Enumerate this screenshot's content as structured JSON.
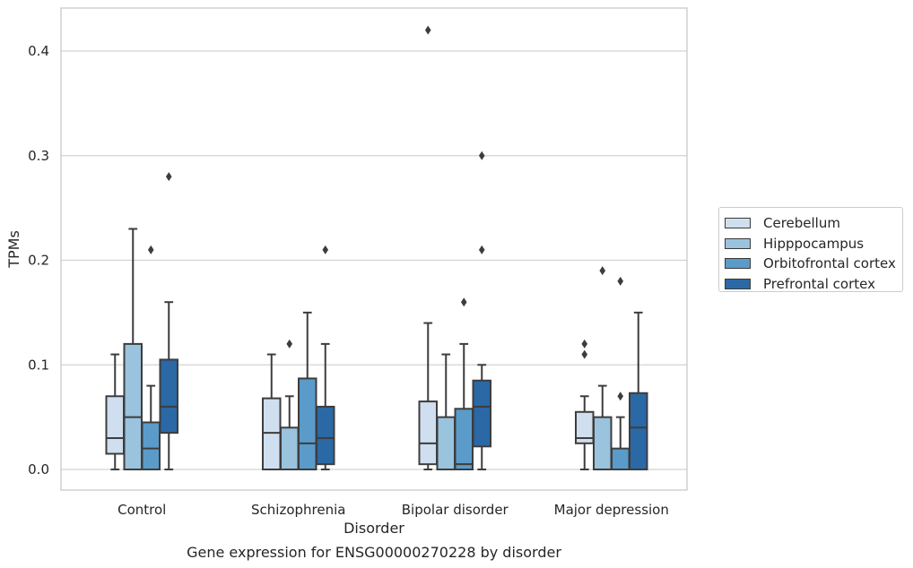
{
  "chart_data": {
    "type": "box",
    "title": "",
    "caption": "Gene expression for ENSG00000270228 by disorder",
    "xlabel": "Disorder",
    "ylabel": "TPMs",
    "ylim": [
      -0.02,
      0.442
    ],
    "yticks": [
      0.0,
      0.1,
      0.2,
      0.3,
      0.4
    ],
    "ytick_labels": [
      "0.0",
      "0.1",
      "0.2",
      "0.3",
      "0.4"
    ],
    "grid": "horizontal",
    "legend_position": "right",
    "categories": [
      "Control",
      "Schizophrenia",
      "Bipolar disorder",
      "Major depression"
    ],
    "series": [
      {
        "name": "Cerebellum",
        "color": "#cfdff0",
        "boxes": [
          {
            "whislo": 0.0,
            "q1": 0.015,
            "med": 0.03,
            "q3": 0.07,
            "whishi": 0.11,
            "fliers": []
          },
          {
            "whislo": 0.0,
            "q1": 0.0,
            "med": 0.035,
            "q3": 0.068,
            "whishi": 0.11,
            "fliers": []
          },
          {
            "whislo": 0.0,
            "q1": 0.005,
            "med": 0.025,
            "q3": 0.065,
            "whishi": 0.14,
            "fliers": [
              0.42
            ]
          },
          {
            "whislo": 0.0,
            "q1": 0.025,
            "med": 0.03,
            "q3": 0.055,
            "whishi": 0.07,
            "fliers": [
              0.11,
              0.12
            ]
          }
        ]
      },
      {
        "name": "Hipppocampus",
        "color": "#9ac3dd",
        "boxes": [
          {
            "whislo": 0.0,
            "q1": 0.0,
            "med": 0.05,
            "q3": 0.12,
            "whishi": 0.23,
            "fliers": []
          },
          {
            "whislo": 0.0,
            "q1": 0.0,
            "med": 0.0,
            "q3": 0.04,
            "whishi": 0.07,
            "fliers": [
              0.12
            ]
          },
          {
            "whislo": 0.0,
            "q1": 0.0,
            "med": 0.0,
            "q3": 0.05,
            "whishi": 0.11,
            "fliers": []
          },
          {
            "whislo": 0.0,
            "q1": 0.0,
            "med": 0.0,
            "q3": 0.05,
            "whishi": 0.08,
            "fliers": [
              0.19
            ]
          }
        ]
      },
      {
        "name": "Orbitofrontal cortex",
        "color": "#5b9bc9",
        "boxes": [
          {
            "whislo": 0.0,
            "q1": 0.0,
            "med": 0.02,
            "q3": 0.045,
            "whishi": 0.08,
            "fliers": [
              0.21
            ]
          },
          {
            "whislo": 0.0,
            "q1": 0.0,
            "med": 0.025,
            "q3": 0.087,
            "whishi": 0.15,
            "fliers": []
          },
          {
            "whislo": 0.0,
            "q1": 0.0,
            "med": 0.005,
            "q3": 0.058,
            "whishi": 0.12,
            "fliers": [
              0.16
            ]
          },
          {
            "whislo": 0.0,
            "q1": 0.0,
            "med": 0.0,
            "q3": 0.02,
            "whishi": 0.05,
            "fliers": [
              0.07,
              0.18
            ]
          }
        ]
      },
      {
        "name": "Prefrontal cortex",
        "color": "#2a68a6",
        "boxes": [
          {
            "whislo": 0.0,
            "q1": 0.035,
            "med": 0.06,
            "q3": 0.105,
            "whishi": 0.16,
            "fliers": [
              0.28
            ]
          },
          {
            "whislo": 0.0,
            "q1": 0.005,
            "med": 0.03,
            "q3": 0.06,
            "whishi": 0.12,
            "fliers": [
              0.21
            ]
          },
          {
            "whislo": 0.0,
            "q1": 0.022,
            "med": 0.06,
            "q3": 0.085,
            "whishi": 0.1,
            "fliers": [
              0.21,
              0.3
            ]
          },
          {
            "whislo": 0.0,
            "q1": 0.0,
            "med": 0.04,
            "q3": 0.073,
            "whishi": 0.15,
            "fliers": []
          }
        ]
      }
    ]
  }
}
